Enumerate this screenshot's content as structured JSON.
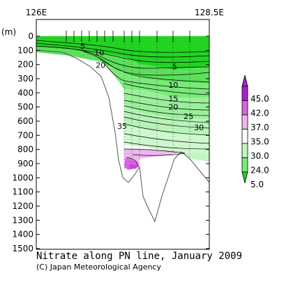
{
  "chart_data": {
    "type": "contour section",
    "title": "Nitrate along PN line, January 2009",
    "credit": "(C) Japan Meteorological Agency",
    "x_ticks": [
      "126E",
      "128.5E"
    ],
    "xlim": [
      126,
      128.5
    ],
    "y_unit": "(m)",
    "y_ticks": [
      0,
      100,
      200,
      300,
      400,
      500,
      600,
      700,
      800,
      900,
      1000,
      1100,
      1200,
      1300,
      1400,
      1500
    ],
    "ylim": [
      0,
      1500
    ],
    "y_reversed": true,
    "contour_labels": [
      {
        "text": "5",
        "x": 126.67,
        "y": 70
      },
      {
        "text": "10",
        "x": 126.91,
        "y": 115
      },
      {
        "text": "20",
        "x": 126.93,
        "y": 205
      },
      {
        "text": "5",
        "x": 128.0,
        "y": 215
      },
      {
        "text": "10",
        "x": 127.98,
        "y": 345
      },
      {
        "text": "15",
        "x": 127.98,
        "y": 440
      },
      {
        "text": "20",
        "x": 127.98,
        "y": 500
      },
      {
        "text": "25",
        "x": 128.2,
        "y": 565
      },
      {
        "text": "30",
        "x": 128.35,
        "y": 645
      },
      {
        "text": "35",
        "x": 127.24,
        "y": 635
      }
    ],
    "colorbar": {
      "labels": [
        "45.0",
        "42.0",
        "37.0",
        "35.0",
        "30.0",
        "24.0",
        "5.0"
      ],
      "colors": [
        "#aa1fd4",
        "#d864e0",
        "#eeb6ef",
        "#ffffff",
        "#c3f5c3",
        "#79ea79",
        "#22d322"
      ]
    }
  }
}
